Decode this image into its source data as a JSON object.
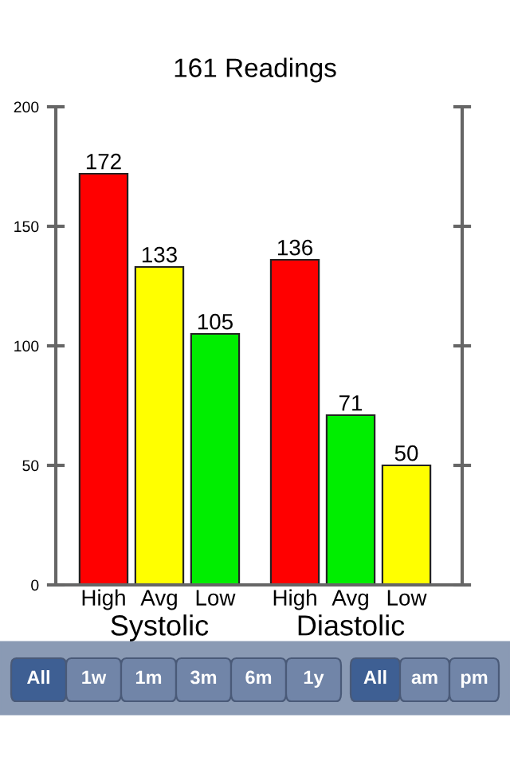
{
  "chart_data": {
    "type": "bar",
    "title": "161 Readings",
    "categories": [
      "High",
      "Avg",
      "Low",
      "High",
      "Avg",
      "Low"
    ],
    "values": [
      172,
      133,
      105,
      136,
      71,
      50
    ],
    "colors": [
      "#ff0000",
      "#ffff00",
      "#00ee00",
      "#ff0000",
      "#00ee00",
      "#ffff00"
    ],
    "ylim": [
      0,
      200
    ],
    "yticks": [
      0,
      50,
      100,
      150,
      200
    ],
    "grid": false,
    "legend": false,
    "data_labels": true,
    "annotations": [
      "Systolic",
      "Diastolic",
      "All",
      "1w",
      "1m",
      "3m",
      "6m",
      "1y",
      "All",
      "am",
      "pm"
    ]
  }
}
